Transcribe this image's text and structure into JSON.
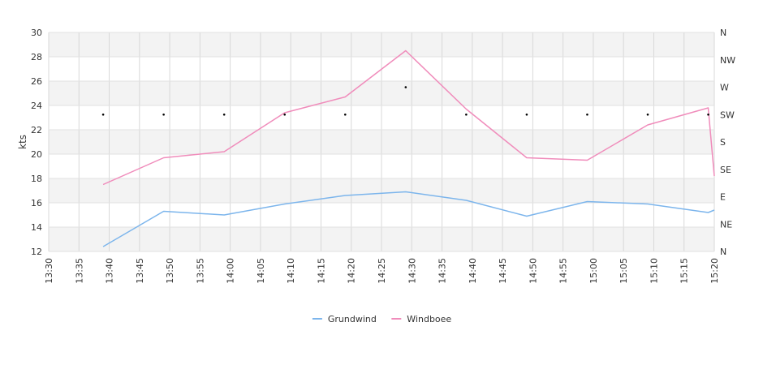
{
  "chart_data": {
    "type": "line",
    "ylabel": "kts",
    "ylim": [
      12,
      30
    ],
    "y_ticks": [
      "12",
      "14",
      "16",
      "18",
      "20",
      "22",
      "24",
      "26",
      "28",
      "30"
    ],
    "x_ticks": [
      "13:30",
      "13:35",
      "13:40",
      "13:45",
      "13:50",
      "13:55",
      "14:00",
      "14:05",
      "14:10",
      "14:15",
      "14:20",
      "14:25",
      "14:30",
      "14:35",
      "14:40",
      "14:45",
      "14:50",
      "14:55",
      "15:00",
      "15:05",
      "15:10",
      "15:15",
      "15:20"
    ],
    "direction_ticks": [
      "N",
      "NE",
      "E",
      "SE",
      "S",
      "SW",
      "W",
      "NW",
      "N"
    ],
    "grid": true,
    "legend_position": "bottom-center",
    "series": [
      {
        "name": "Grundwind",
        "color": "#7cb5ec",
        "x": [
          "13:39",
          "13:49",
          "13:59",
          "14:09",
          "14:19",
          "14:29",
          "14:39",
          "14:49",
          "14:59",
          "15:09",
          "15:19",
          "15:20"
        ],
        "values": [
          12.4,
          15.3,
          15.0,
          15.9,
          16.6,
          16.9,
          16.2,
          14.9,
          16.1,
          15.9,
          15.2,
          15.4
        ]
      },
      {
        "name": "Windboee",
        "color": "#f08cbb",
        "x": [
          "13:39",
          "13:49",
          "13:59",
          "14:09",
          "14:19",
          "14:29",
          "14:39",
          "14:49",
          "14:59",
          "15:09",
          "15:19",
          "15:20"
        ],
        "values": [
          17.5,
          19.7,
          20.2,
          23.4,
          24.7,
          28.5,
          23.7,
          19.7,
          19.5,
          22.4,
          23.8,
          18.2
        ]
      }
    ],
    "direction": {
      "x": [
        "13:39",
        "13:49",
        "13:59",
        "14:09",
        "14:19",
        "14:29",
        "14:39",
        "14:49",
        "14:59",
        "15:09",
        "15:19"
      ],
      "values": [
        "SW",
        "SW",
        "SW",
        "SW",
        "SW",
        "W",
        "SW",
        "SW",
        "SW",
        "SW",
        "SW"
      ]
    }
  }
}
